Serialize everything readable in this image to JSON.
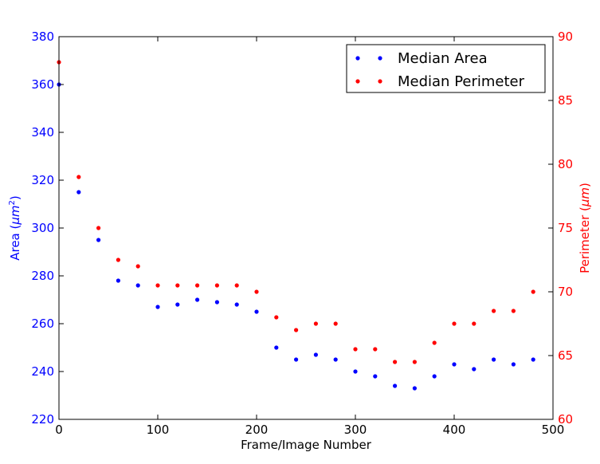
{
  "chart_data": {
    "type": "scatter",
    "xlabel": "Frame/Image Number",
    "ylabel_left": {
      "prefix": "Area (",
      "unit": "μm",
      "power": "2",
      "suffix": ")"
    },
    "ylabel_right": {
      "prefix": "Perimeter (",
      "unit": "μm",
      "suffix": ")"
    },
    "xlim": [
      0,
      500
    ],
    "ylim_left": [
      220,
      380
    ],
    "ylim_right": [
      60,
      90
    ],
    "xticks": [
      0,
      100,
      200,
      300,
      400,
      500
    ],
    "yticks_left": [
      220,
      240,
      260,
      280,
      300,
      320,
      340,
      360,
      380
    ],
    "yticks_right": [
      60,
      65,
      70,
      75,
      80,
      85,
      90
    ],
    "colors": {
      "area": "#0000ff",
      "perimeter": "#ff0000",
      "axis": "#000000"
    },
    "legend_position": "top-right",
    "series": [
      {
        "name": "Median Area",
        "axis": "left",
        "color": "#0000ff",
        "x": [
          0,
          20,
          40,
          60,
          80,
          100,
          120,
          140,
          160,
          180,
          200,
          220,
          240,
          260,
          280,
          300,
          320,
          340,
          360,
          380,
          400,
          420,
          440,
          460,
          480
        ],
        "y": [
          360,
          315,
          295,
          278,
          276,
          267,
          268,
          270,
          269,
          268,
          265,
          250,
          245,
          247,
          245,
          240,
          238,
          234,
          233,
          238,
          243,
          241,
          245,
          243,
          245
        ]
      },
      {
        "name": "Median Perimeter",
        "axis": "right",
        "color": "#ff0000",
        "x": [
          0,
          20,
          40,
          60,
          80,
          100,
          120,
          140,
          160,
          180,
          200,
          220,
          240,
          260,
          280,
          300,
          320,
          340,
          360,
          380,
          400,
          420,
          440,
          460,
          480
        ],
        "y": [
          88,
          79,
          75,
          72.5,
          72,
          70.5,
          70.5,
          70.5,
          70.5,
          70.5,
          70,
          68,
          67,
          67.5,
          67.5,
          65.5,
          65.5,
          64.5,
          64.5,
          66,
          67.5,
          67.5,
          68.5,
          68.5,
          70
        ]
      }
    ]
  }
}
